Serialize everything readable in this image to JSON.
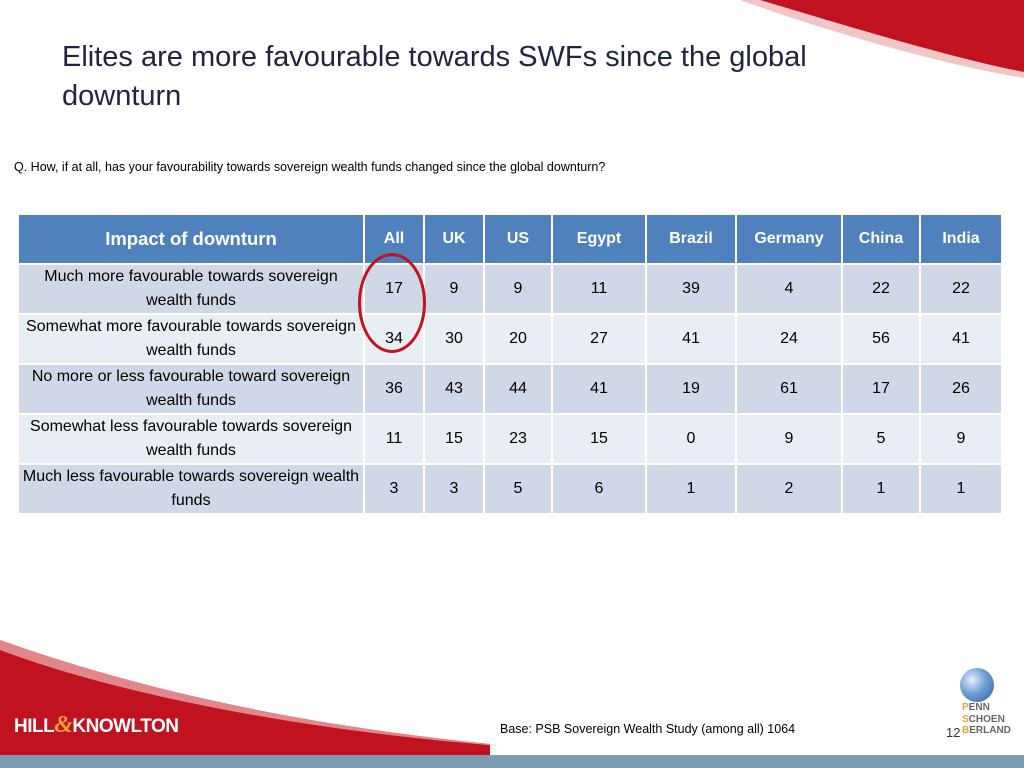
{
  "slide": {
    "title": "Elites are more favourable towards SWFs since the global downturn",
    "question": "Q. How, if at all, has your favourability towards sovereign wealth funds changed since the global downturn?",
    "base_note": "Base: PSB Sovereign Wealth Study (among all) 1064",
    "page_number": "12",
    "colors": {
      "header_blue": "#4f81bd",
      "row_odd": "#d0d8e8",
      "row_even": "#e9edf4",
      "accent_red": "#c0121f"
    }
  },
  "table": {
    "headers": [
      "Impact of downturn",
      "All",
      "UK",
      "US",
      "Egypt",
      "Brazil",
      "Germany",
      "China",
      "India"
    ],
    "rows": [
      {
        "label": "Much more favourable towards sovereign wealth funds",
        "values": [
          "17",
          "9",
          "9",
          "11",
          "39",
          "4",
          "22",
          "22"
        ]
      },
      {
        "label": "Somewhat more favourable towards sovereign wealth funds",
        "values": [
          "34",
          "30",
          "20",
          "27",
          "41",
          "24",
          "56",
          "41"
        ]
      },
      {
        "label": "No more or less favourable toward sovereign wealth funds",
        "values": [
          "36",
          "43",
          "44",
          "41",
          "19",
          "61",
          "17",
          "26"
        ]
      },
      {
        "label": "Somewhat less favourable towards sovereign wealth funds",
        "values": [
          "11",
          "15",
          "23",
          "15",
          "0",
          "9",
          "5",
          "9"
        ]
      },
      {
        "label": "Much less favourable towards sovereign wealth funds",
        "values": [
          "3",
          "3",
          "5",
          "6",
          "1",
          "2",
          "1",
          "1"
        ]
      }
    ]
  },
  "logos": {
    "hill_knowlton": {
      "part1": "HILL",
      "amp": "&",
      "part2": "KNOWLTON"
    },
    "psb": {
      "line1_initial": "P",
      "line1_rest": "ENN",
      "line2_initial": "S",
      "line2_rest": "CHOEN",
      "line3_initial": "B",
      "line3_rest": "ERLAND"
    }
  }
}
